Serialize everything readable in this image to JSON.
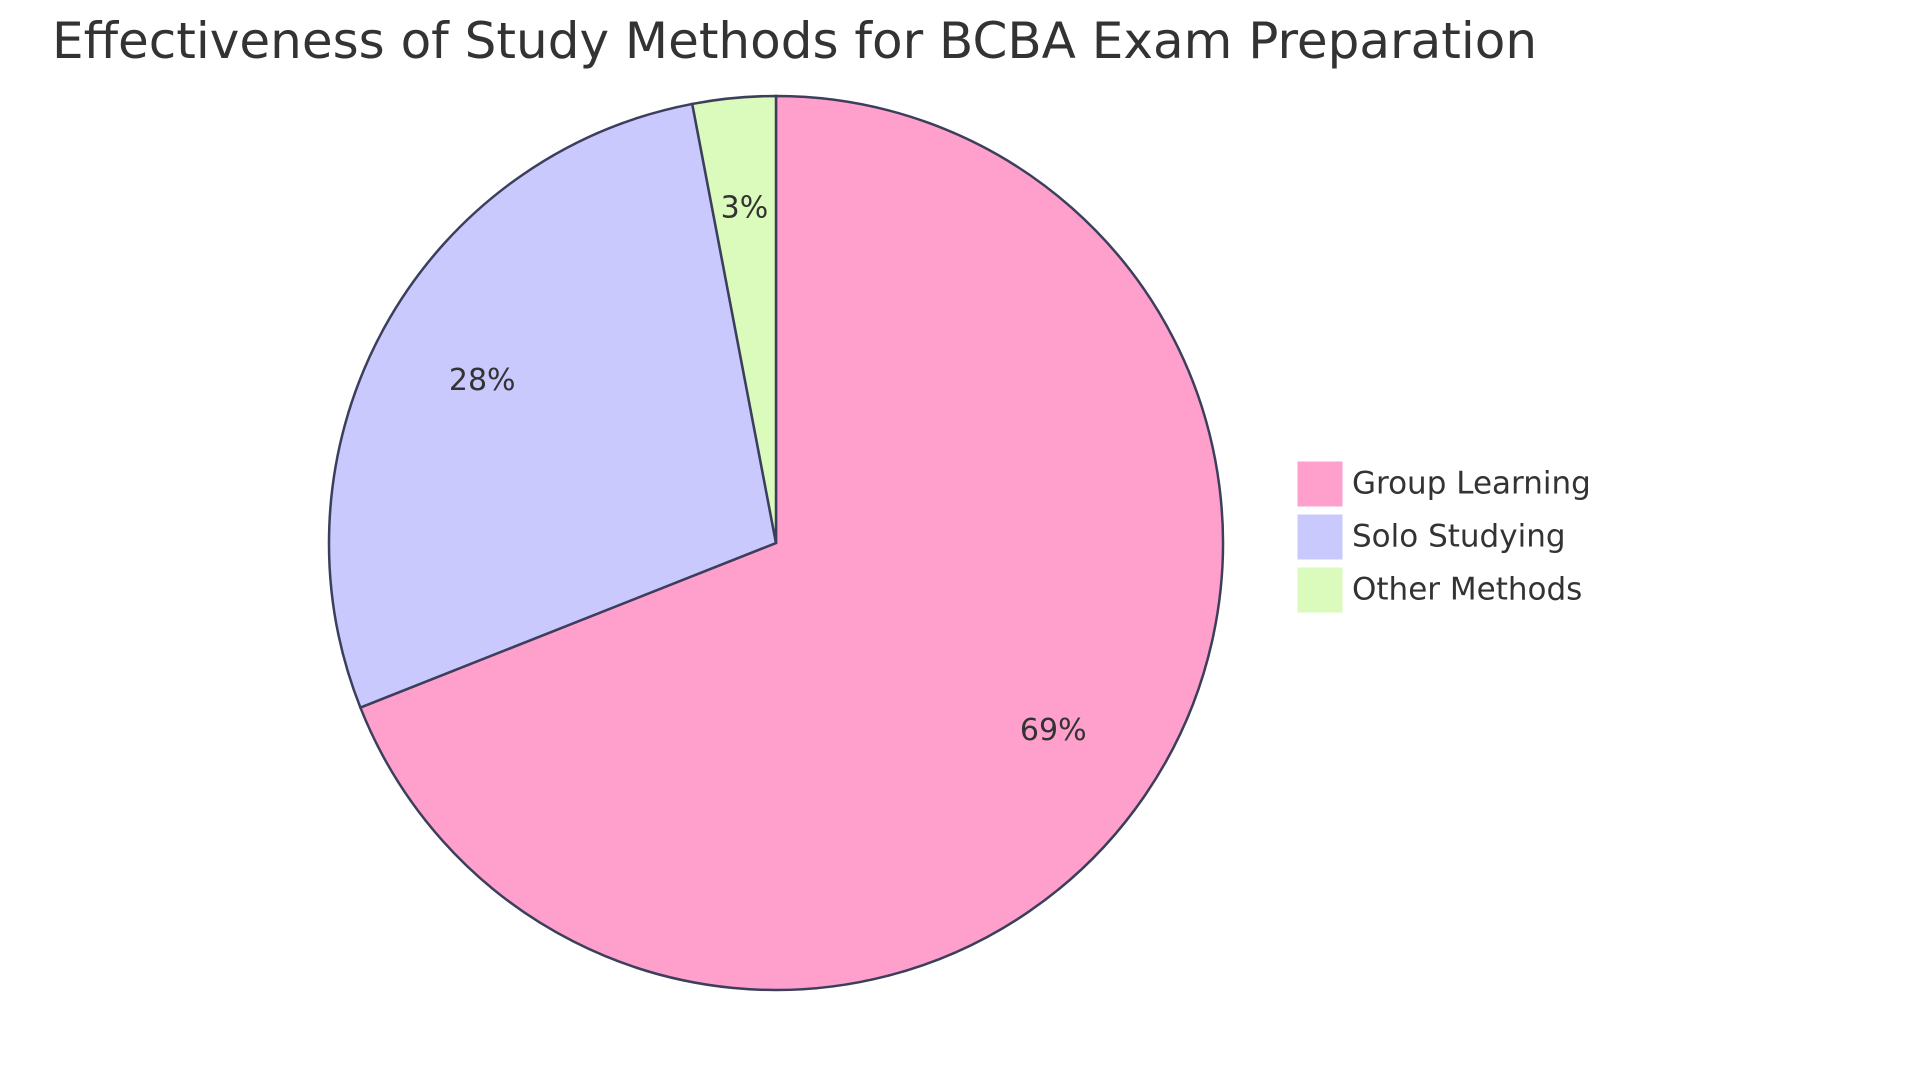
{
  "chart_data": {
    "type": "pie",
    "title": "Effectiveness of Study Methods for BCBA Exam Preparation",
    "series": [
      {
        "name": "Group Learning",
        "value": 69,
        "label": "69%",
        "color": "#FFA0CC"
      },
      {
        "name": "Solo Studying",
        "value": 28,
        "label": "28%",
        "color": "#C9C9FE"
      },
      {
        "name": "Other Methods",
        "value": 3,
        "label": "3%",
        "color": "#DAFBBC"
      }
    ],
    "stroke_color": "#3B3F5C",
    "legend_position": "right"
  }
}
